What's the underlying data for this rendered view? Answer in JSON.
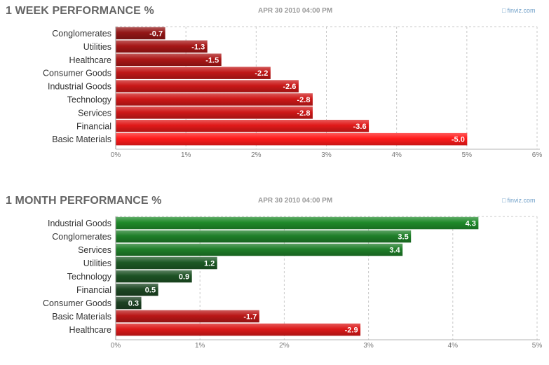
{
  "branding": {
    "name": "finviz.com",
    "icon": "finviz-logo-icon"
  },
  "colors": {
    "neg_strong": "#ff1a1a",
    "neg_dark": "#6e1414",
    "pos_strong": "#1f8a2a",
    "pos_dark": "#1c2e20"
  },
  "chart_data": [
    {
      "type": "bar",
      "orientation": "horizontal",
      "title": "1 WEEK PERFORMANCE %",
      "timestamp": "APR 30 2010 04:00 PM",
      "categories": [
        "Conglomerates",
        "Utilities",
        "Healthcare",
        "Consumer Goods",
        "Industrial Goods",
        "Technology",
        "Services",
        "Financial",
        "Basic Materials"
      ],
      "values": [
        -0.7,
        -1.3,
        -1.5,
        -2.2,
        -2.6,
        -2.8,
        -2.8,
        -3.6,
        -5.0
      ],
      "data_labels": [
        "-0.7",
        "-1.3",
        "-1.5",
        "-2.2",
        "-2.6",
        "-2.8",
        "-2.8",
        "-3.6",
        "-5.0"
      ],
      "xlim": [
        0,
        6
      ],
      "xticks": [
        "0%",
        "1%",
        "2%",
        "3%",
        "4%",
        "5%",
        "6%"
      ],
      "bar_length": "absolute value",
      "grid": true
    },
    {
      "type": "bar",
      "orientation": "horizontal",
      "title": "1 MONTH PERFORMANCE %",
      "timestamp": "APR 30 2010 04:00 PM",
      "categories": [
        "Industrial Goods",
        "Conglomerates",
        "Services",
        "Utilities",
        "Technology",
        "Financial",
        "Consumer Goods",
        "Basic Materials",
        "Healthcare"
      ],
      "values": [
        4.3,
        3.5,
        3.4,
        1.2,
        0.9,
        0.5,
        0.3,
        -1.7,
        -2.9
      ],
      "data_labels": [
        "4.3",
        "3.5",
        "3.4",
        "1.2",
        "0.9",
        "0.5",
        "0.3",
        "-1.7",
        "-2.9"
      ],
      "xlim": [
        0,
        5
      ],
      "xticks": [
        "0%",
        "1%",
        "2%",
        "3%",
        "4%",
        "5%"
      ],
      "bar_length": "absolute value",
      "grid": true
    }
  ]
}
